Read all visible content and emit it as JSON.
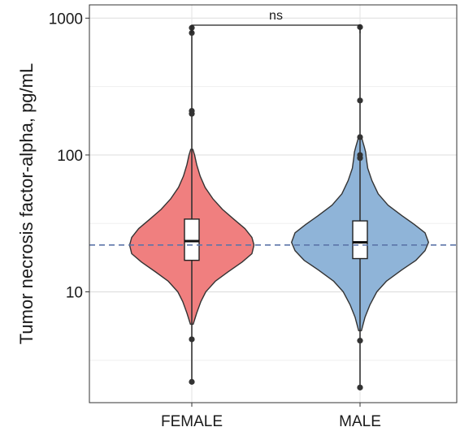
{
  "chart_data": {
    "type": "violin",
    "title": "",
    "xlabel": "",
    "ylabel": "Tumor necrosis factor-alpha, pg/mL",
    "y_scale": "log10",
    "ylim": [
      1.55,
      1250
    ],
    "y_ticks": [
      {
        "value": 10,
        "label": "10"
      },
      {
        "value": 100,
        "label": "100"
      },
      {
        "value": 1000,
        "label": "1000"
      }
    ],
    "y_minor_grid": [
      3.16,
      31.6,
      316
    ],
    "grid": true,
    "legend": "none",
    "categories": [
      "FEMALE",
      "MALE"
    ],
    "groups": [
      {
        "name": "FEMALE",
        "color": "#f07f7f",
        "box": {
          "q1": 17.0,
          "median": 23.5,
          "q3": 34.0,
          "whisker_low": 5.8,
          "whisker_high": 82
        },
        "violin_range": [
          5.8,
          110
        ],
        "outliers": [
          2.2,
          4.5,
          200,
          210,
          780,
          850
        ],
        "density": [
          [
            5.8,
            0.02
          ],
          [
            7.0,
            0.07
          ],
          [
            8.5,
            0.13
          ],
          [
            10,
            0.2
          ],
          [
            12,
            0.34
          ],
          [
            14,
            0.52
          ],
          [
            16.5,
            0.72
          ],
          [
            19,
            0.86
          ],
          [
            22,
            0.89
          ],
          [
            25,
            0.86
          ],
          [
            29,
            0.76
          ],
          [
            34,
            0.6
          ],
          [
            40,
            0.44
          ],
          [
            48,
            0.3
          ],
          [
            58,
            0.19
          ],
          [
            70,
            0.12
          ],
          [
            85,
            0.07
          ],
          [
            100,
            0.04
          ],
          [
            110,
            0.015
          ]
        ]
      },
      {
        "name": "MALE",
        "color": "#8fb4d8",
        "box": {
          "q1": 17.5,
          "median": 23.0,
          "q3": 33.0,
          "whisker_low": 5.5,
          "whisker_high": 95
        },
        "violin_range": [
          5.2,
          140
        ],
        "outliers": [
          2.0,
          4.4,
          95,
          100,
          135,
          250,
          860
        ],
        "density": [
          [
            5.2,
            0.02
          ],
          [
            6.5,
            0.07
          ],
          [
            8.0,
            0.14
          ],
          [
            10,
            0.24
          ],
          [
            12,
            0.38
          ],
          [
            14.5,
            0.6
          ],
          [
            17,
            0.8
          ],
          [
            20,
            0.93
          ],
          [
            23,
            0.98
          ],
          [
            27,
            0.93
          ],
          [
            31,
            0.78
          ],
          [
            36,
            0.6
          ],
          [
            43,
            0.4
          ],
          [
            52,
            0.26
          ],
          [
            65,
            0.17
          ],
          [
            80,
            0.11
          ],
          [
            95,
            0.09
          ],
          [
            105,
            0.08
          ],
          [
            115,
            0.06
          ],
          [
            130,
            0.03
          ],
          [
            140,
            0.015
          ]
        ]
      }
    ],
    "reference_line": {
      "value": 22,
      "style": "dashed",
      "color": "#5b74a8"
    },
    "comparison": {
      "label": "ns",
      "groups": [
        "FEMALE",
        "MALE"
      ]
    }
  }
}
